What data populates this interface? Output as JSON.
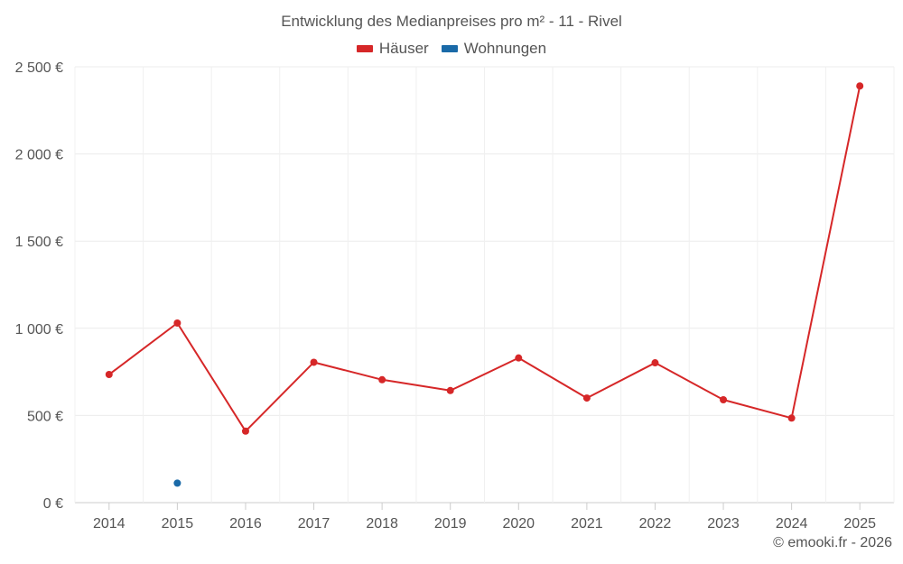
{
  "chart_data": {
    "type": "line",
    "title": "Entwicklung des Medianpreises pro m² - 11 - Rivel",
    "categories": [
      "2014",
      "2015",
      "2016",
      "2017",
      "2018",
      "2019",
      "2020",
      "2021",
      "2022",
      "2023",
      "2024",
      "2025"
    ],
    "series": [
      {
        "name": "Häuser",
        "color": "#d62728",
        "values": [
          735,
          1030,
          410,
          805,
          705,
          643,
          830,
          600,
          802,
          590,
          485,
          2390
        ]
      },
      {
        "name": "Wohnungen",
        "color": "#1a6aa8",
        "values": [
          null,
          112,
          null,
          null,
          null,
          null,
          null,
          null,
          null,
          null,
          null,
          null
        ]
      }
    ],
    "ylim": [
      0,
      2500
    ],
    "yticks": [
      0,
      500,
      1000,
      1500,
      2000,
      2500
    ],
    "ytick_labels": [
      "0 €",
      "500 €",
      "1 000 €",
      "1 500 €",
      "2 000 €",
      "2 500 €"
    ],
    "xlabel": "",
    "ylabel": "",
    "grid": true,
    "legend_position": "top-center"
  },
  "credit": "© emooki.fr - 2026"
}
